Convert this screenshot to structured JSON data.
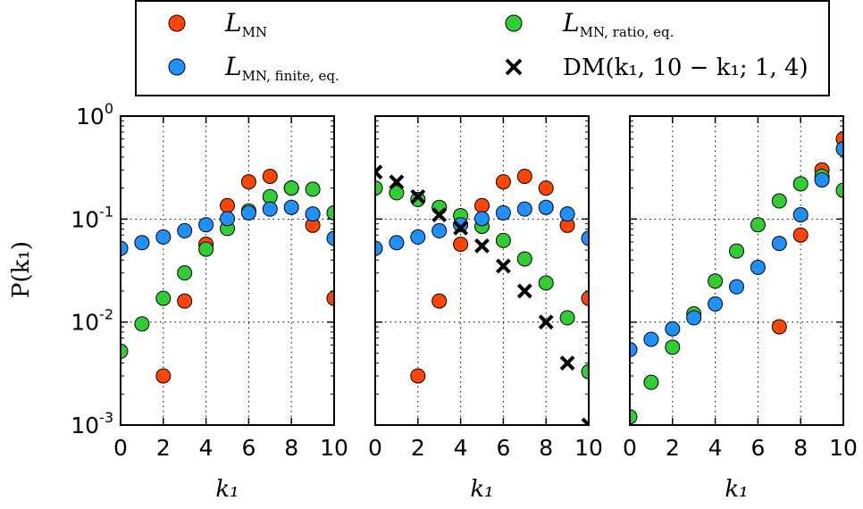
{
  "chart_data": {
    "type": "scatter",
    "ylabel": "P(k₁)",
    "xlabel": "k₁",
    "y_scale": "log",
    "ylim": [
      0.001,
      1
    ],
    "xlim": [
      0,
      10
    ],
    "x_ticks": [
      "0",
      "2",
      "4",
      "6",
      "8",
      "10"
    ],
    "y_ticks": [
      {
        "base": "10",
        "exp": "0"
      },
      {
        "base": "10",
        "exp": "-1"
      },
      {
        "base": "10",
        "exp": "-2"
      },
      {
        "base": "10",
        "exp": "-3"
      }
    ],
    "grid": true,
    "legend_position": "top-center",
    "legend": [
      {
        "key": "mn",
        "main": "L",
        "sub": "MN",
        "marker": "circle",
        "color": "#ff4500"
      },
      {
        "key": "ratio",
        "main": "L",
        "sub": "MN, ratio, eq.",
        "marker": "circle",
        "color": "#32cd32"
      },
      {
        "key": "finite",
        "main": "L",
        "sub": "MN, finite, eq.",
        "marker": "circle",
        "color": "#1e90ff"
      },
      {
        "key": "dm",
        "label": "DM(k₁, 10 − k₁; 1, 4)",
        "marker": "x",
        "color": "#000000"
      }
    ],
    "panels": [
      {
        "series": [
          {
            "key": "mn",
            "x": [
              2,
              3,
              4,
              5,
              6,
              7,
              8,
              9,
              10
            ],
            "y": [
              0.003,
              0.016,
              0.057,
              0.135,
              0.23,
              0.26,
              0.2,
              0.087,
              0.017
            ]
          },
          {
            "key": "ratio",
            "x": [
              0,
              1,
              2,
              3,
              4,
              5,
              6,
              7,
              8,
              9,
              10
            ],
            "y": [
              0.0052,
              0.0096,
              0.017,
              0.03,
              0.051,
              0.081,
              0.12,
              0.165,
              0.2,
              0.195,
              0.115
            ]
          },
          {
            "key": "finite",
            "x": [
              0,
              1,
              2,
              3,
              4,
              5,
              6,
              7,
              8,
              9,
              10
            ],
            "y": [
              0.052,
              0.059,
              0.067,
              0.077,
              0.088,
              0.101,
              0.115,
              0.125,
              0.13,
              0.112,
              0.065
            ]
          }
        ]
      },
      {
        "series": [
          {
            "key": "mn",
            "x": [
              2,
              3,
              4,
              5,
              6,
              7,
              8,
              9,
              10
            ],
            "y": [
              0.003,
              0.016,
              0.057,
              0.135,
              0.23,
              0.26,
              0.2,
              0.087,
              0.017
            ]
          },
          {
            "key": "ratio",
            "x": [
              0,
              1,
              2,
              3,
              4,
              5,
              6,
              7,
              8,
              9,
              10
            ],
            "y": [
              0.2,
              0.18,
              0.155,
              0.13,
              0.108,
              0.085,
              0.062,
              0.041,
              0.024,
              0.011,
              0.0033
            ]
          },
          {
            "key": "finite",
            "x": [
              0,
              1,
              2,
              3,
              4,
              5,
              6,
              7,
              8,
              9,
              10
            ],
            "y": [
              0.052,
              0.059,
              0.067,
              0.077,
              0.088,
              0.101,
              0.115,
              0.125,
              0.13,
              0.112,
              0.065
            ]
          },
          {
            "key": "dm",
            "x": [
              0,
              1,
              2,
              3,
              4,
              5,
              6,
              7,
              8,
              9,
              10
            ],
            "y": [
              0.286,
              0.229,
              0.165,
              0.11,
              0.082,
              0.055,
              0.035,
              0.02,
              0.01,
              0.004,
              0.001
            ]
          }
        ]
      },
      {
        "series": [
          {
            "key": "mn",
            "x": [
              7,
              8,
              9,
              10
            ],
            "y": [
              0.009,
              0.07,
              0.3,
              0.6
            ]
          },
          {
            "key": "ratio",
            "x": [
              0,
              1,
              2,
              3,
              4,
              5,
              6,
              7,
              8,
              9,
              10
            ],
            "y": [
              0.0012,
              0.0026,
              0.0057,
              0.012,
              0.025,
              0.049,
              0.088,
              0.15,
              0.22,
              0.26,
              0.19
            ]
          },
          {
            "key": "finite",
            "x": [
              0,
              1,
              2,
              3,
              4,
              5,
              6,
              7,
              8,
              9,
              10
            ],
            "y": [
              0.0054,
              0.0068,
              0.0086,
              0.011,
              0.015,
              0.022,
              0.034,
              0.058,
              0.11,
              0.24,
              0.48
            ]
          }
        ]
      }
    ]
  }
}
